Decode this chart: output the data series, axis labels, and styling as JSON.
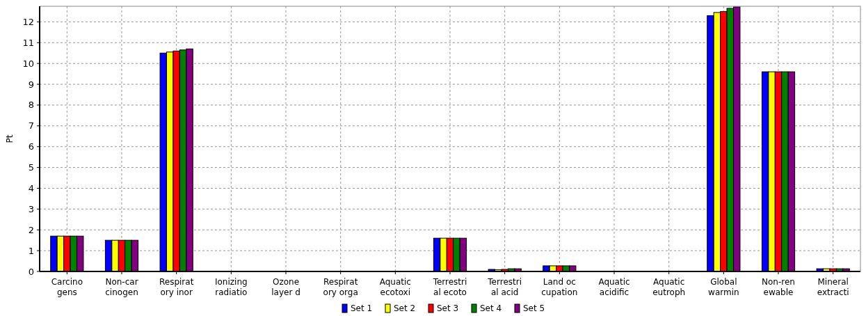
{
  "chart_data": {
    "type": "bar",
    "ylabel": "Pt",
    "categories": [
      "Carcino\ngens",
      "Non-car\ncinogen",
      "Respirat\nory inor",
      "Ionizing\nradiatio",
      "Ozone\nlayer d",
      "Respirat\nory orga",
      "Aquatic\necotoxi",
      "Terrestri\nal ecoto",
      "Terrestri\nal acid",
      "Land oc\ncupation",
      "Aquatic\nacidific",
      "Aquatic\neutroph",
      "Global\nwarmin",
      "Non-ren\newable",
      "Mineral\nextracti"
    ],
    "series": [
      {
        "name": "Set 1",
        "color": "#0000ff",
        "values": [
          1.7,
          1.5,
          10.5,
          0,
          0,
          0,
          0,
          1.6,
          0.1,
          0.27,
          0,
          0,
          12.3,
          9.6,
          0.13
        ]
      },
      {
        "name": "Set 2",
        "color": "#ffff00",
        "values": [
          1.7,
          1.5,
          10.55,
          0,
          0,
          0,
          0,
          1.6,
          0.08,
          0.27,
          0,
          0,
          12.45,
          9.6,
          0.13
        ]
      },
      {
        "name": "Set 3",
        "color": "#ff0000",
        "values": [
          1.7,
          1.5,
          10.6,
          0,
          0,
          0,
          0,
          1.6,
          0.1,
          0.27,
          0,
          0,
          12.5,
          9.6,
          0.13
        ]
      },
      {
        "name": "Set 4",
        "color": "#008000",
        "values": [
          1.7,
          1.5,
          10.65,
          0,
          0,
          0,
          0,
          1.6,
          0.13,
          0.27,
          0,
          0,
          12.65,
          9.6,
          0.13
        ]
      },
      {
        "name": "Set 5",
        "color": "#800080",
        "values": [
          1.7,
          1.5,
          10.7,
          0,
          0,
          0,
          0,
          1.6,
          0.13,
          0.27,
          0,
          0,
          12.72,
          9.6,
          0.13
        ]
      }
    ],
    "ylim": [
      0,
      12.75
    ],
    "yticks": [
      0,
      1,
      2,
      3,
      4,
      5,
      6,
      7,
      8,
      9,
      10,
      11,
      12
    ],
    "grid": true,
    "legend": "bottom"
  }
}
